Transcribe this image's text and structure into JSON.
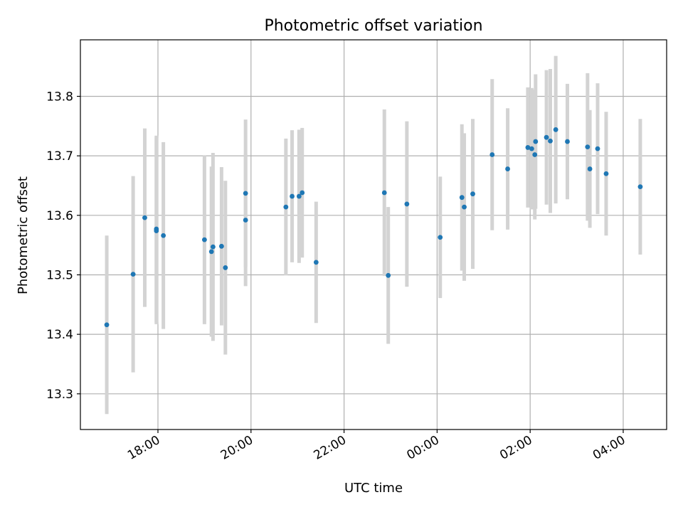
{
  "chart_data": {
    "type": "scatter",
    "title": "Photometric offset variation",
    "xlabel": "UTC time",
    "ylabel": "Photometric offset",
    "x_unit": "time of day (UTC), night starting 17:00",
    "xlim": [
      "16:20",
      "04:56"
    ],
    "ylim": [
      13.24,
      13.895
    ],
    "grid": true,
    "legend": "none",
    "x_ticks": [
      "18:00",
      "20:00",
      "22:00",
      "00:00",
      "02:00",
      "04:00"
    ],
    "y_ticks": [
      "13.3",
      "13.4",
      "13.5",
      "13.6",
      "13.7",
      "13.8"
    ],
    "colors": {
      "point": "#1f77b4",
      "errorbar": "#d3d3d3",
      "grid": "#b0b0b0"
    },
    "series": [
      {
        "x": [
          "16:54",
          "17:28",
          "17:43",
          "17:58",
          "17:58",
          "18:07",
          "19:00",
          "19:09",
          "19:11",
          "19:22",
          "19:27",
          "19:53",
          "19:53",
          "20:45",
          "20:53",
          "21:02",
          "21:06",
          "21:24",
          "22:52",
          "22:57",
          "23:21",
          "00:04",
          "00:32",
          "00:35",
          "00:46",
          "01:11",
          "01:31",
          "01:57",
          "02:02",
          "02:06",
          "02:07",
          "02:21",
          "02:26",
          "02:33",
          "02:48",
          "03:14",
          "03:17",
          "03:27",
          "03:38",
          "04:22"
        ],
        "y": [
          13.416,
          13.501,
          13.596,
          13.577,
          13.574,
          13.566,
          13.559,
          13.539,
          13.547,
          13.548,
          13.512,
          13.592,
          13.637,
          13.614,
          13.632,
          13.632,
          13.638,
          13.521,
          13.638,
          13.499,
          13.619,
          13.563,
          13.63,
          13.614,
          13.636,
          13.702,
          13.678,
          13.714,
          13.712,
          13.702,
          13.724,
          13.731,
          13.725,
          13.744,
          13.724,
          13.715,
          13.678,
          13.712,
          13.67,
          13.648
        ],
        "yerr": [
          0.15,
          0.165,
          0.15,
          0.157,
          0.157,
          0.157,
          0.142,
          0.143,
          0.158,
          0.133,
          0.146,
          0.111,
          0.124,
          0.115,
          0.111,
          0.112,
          0.109,
          0.102,
          0.14,
          0.115,
          0.139,
          0.102,
          0.123,
          0.124,
          0.126,
          0.127,
          0.102,
          0.101,
          0.102,
          0.109,
          0.113,
          0.113,
          0.121,
          0.124,
          0.097,
          0.124,
          0.099,
          0.11,
          0.104,
          0.114
        ]
      }
    ]
  }
}
